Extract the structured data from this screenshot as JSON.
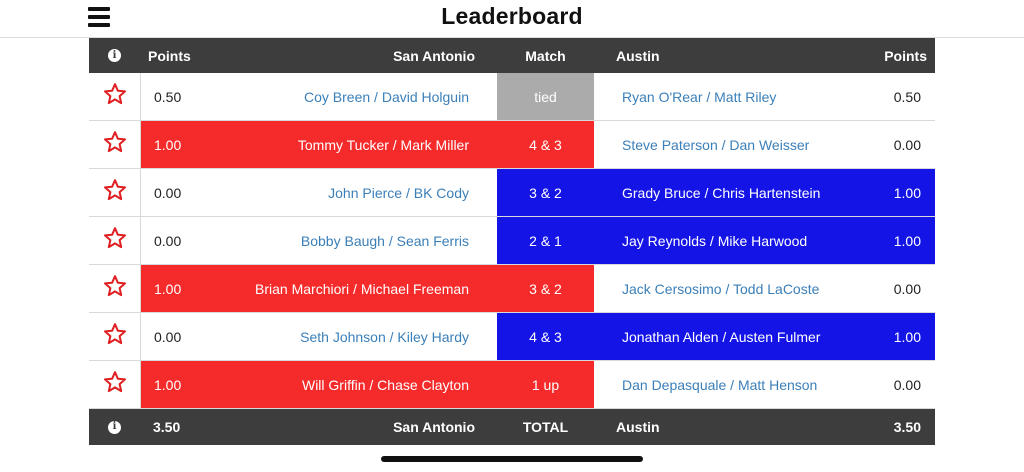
{
  "title": "Leaderboard",
  "header": {
    "left_points": "Points",
    "left_team": "San Antonio",
    "match": "Match",
    "right_team": "Austin",
    "right_points": "Points"
  },
  "colors": {
    "san_antonio_win": "#f52b2b",
    "austin_win": "#1414e6",
    "tied": "#ababab",
    "header_bg": "#3d3d3d",
    "link": "#3b7fb8"
  },
  "icons": {
    "menu": "hamburger-icon",
    "info": "info-icon",
    "favorite": "star-outline-icon"
  },
  "matches": [
    {
      "left_points": "0.50",
      "left_players": "Coy Breen / David Holguin",
      "result": "tied",
      "right_players": "Ryan O'Rear / Matt Riley",
      "right_points": "0.50",
      "winner": "tie"
    },
    {
      "left_points": "1.00",
      "left_players": "Tommy Tucker / Mark Miller",
      "result": "4 & 3",
      "right_players": "Steve Paterson / Dan Weisser",
      "right_points": "0.00",
      "winner": "left"
    },
    {
      "left_points": "0.00",
      "left_players": "John Pierce / BK Cody",
      "result": "3 & 2",
      "right_players": "Grady Bruce / Chris Hartenstein",
      "right_points": "1.00",
      "winner": "right"
    },
    {
      "left_points": "0.00",
      "left_players": "Bobby Baugh / Sean Ferris",
      "result": "2 & 1",
      "right_players": "Jay Reynolds / Mike Harwood",
      "right_points": "1.00",
      "winner": "right"
    },
    {
      "left_points": "1.00",
      "left_players": "Brian Marchiori / Michael Freeman",
      "result": "3 & 2",
      "right_players": "Jack Cersosimo / Todd LaCoste",
      "right_points": "0.00",
      "winner": "left"
    },
    {
      "left_points": "0.00",
      "left_players": "Seth Johnson / Kiley Hardy",
      "result": "4 & 3",
      "right_players": "Jonathan Alden / Austen Fulmer",
      "right_points": "1.00",
      "winner": "right"
    },
    {
      "left_points": "1.00",
      "left_players": "Will Griffin / Chase Clayton",
      "result": "1 up",
      "right_players": "Dan Depasquale / Matt Henson",
      "right_points": "0.00",
      "winner": "left"
    }
  ],
  "footer": {
    "left_total": "3.50",
    "left_team": "San Antonio",
    "label": "TOTAL",
    "right_team": "Austin",
    "right_total": "3.50"
  }
}
